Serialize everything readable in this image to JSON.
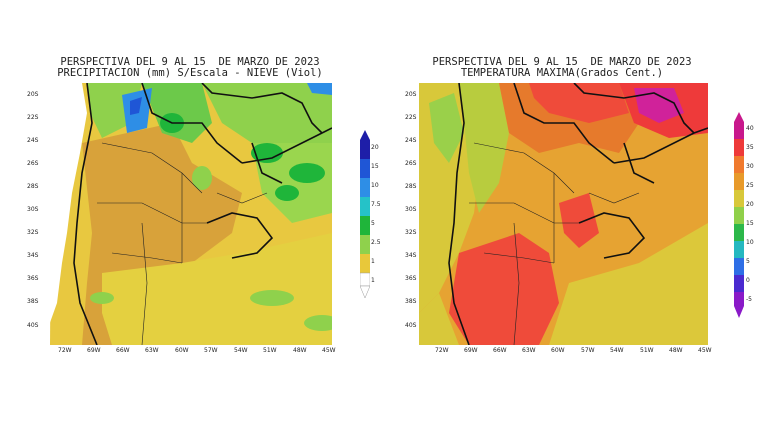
{
  "left_panel": {
    "title_line1": "PERSPECTIVA DEL 9 AL 15  DE MARZO DE 2023",
    "title_line2": "PRECIPITACION (mm) S/Escala - NIEVE (Viol)",
    "lat_ticks": [
      "20S",
      "22S",
      "24S",
      "26S",
      "28S",
      "30S",
      "32S",
      "34S",
      "36S",
      "38S",
      "40S"
    ],
    "lon_ticks": [
      "72W",
      "69W",
      "66W",
      "63W",
      "60W",
      "57W",
      "54W",
      "51W",
      "48W",
      "45W"
    ],
    "colorbar": {
      "labels": [
        "20",
        "15",
        "10",
        "7.5",
        "5",
        "2.5",
        "1",
        "1"
      ],
      "colors": [
        "#1e1ea8",
        "#1f56d6",
        "#2e8ee6",
        "#25c2c8",
        "#1fb53a",
        "#8fd14c",
        "#c6d93a",
        "#e8c83a"
      ]
    }
  },
  "right_panel": {
    "title_line1": "PERSPECTIVA DEL 9 AL 15  DE MARZO DE 2023",
    "title_line2": "TEMPERATURA MAXIMA(Grados Cent.)",
    "lat_ticks": [
      "20S",
      "22S",
      "24S",
      "26S",
      "28S",
      "30S",
      "32S",
      "34S",
      "36S",
      "38S",
      "40S"
    ],
    "lon_ticks": [
      "72W",
      "69W",
      "66W",
      "63W",
      "60W",
      "57W",
      "54W",
      "51W",
      "48W",
      "45W"
    ],
    "colorbar": {
      "labels": [
        "40",
        "35",
        "30",
        "25",
        "20",
        "15",
        "10",
        "5",
        "0",
        "-5"
      ],
      "colors": [
        "#c8188c",
        "#ee3a3a",
        "#f07a2e",
        "#e89a2a",
        "#d8c83a",
        "#90d04a",
        "#2cb84a",
        "#25b8c0",
        "#2e6ee6",
        "#4a2ad0",
        "#8a1ac8"
      ]
    }
  }
}
